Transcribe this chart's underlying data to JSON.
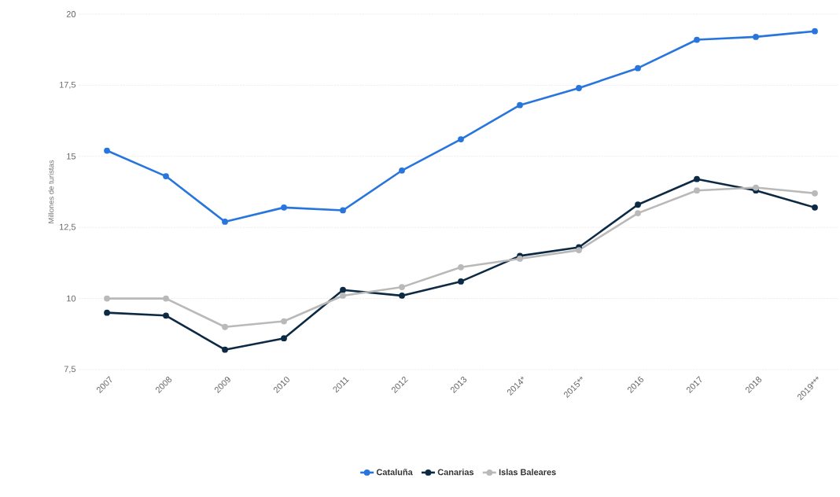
{
  "chart_data": {
    "type": "line",
    "ylabel": "Millones de turistas",
    "categories": [
      "2007",
      "2008",
      "2009",
      "2010",
      "2011",
      "2012",
      "2013",
      "2014*",
      "2015**",
      "2016",
      "2017",
      "2018",
      "2019***"
    ],
    "series": [
      {
        "name": "Cataluña",
        "color": "#2876dd",
        "values": [
          15.2,
          14.3,
          12.7,
          13.2,
          13.1,
          14.5,
          15.6,
          16.8,
          17.4,
          18.1,
          19.1,
          19.2,
          19.4
        ]
      },
      {
        "name": "Canarias",
        "color": "#0d2a45",
        "values": [
          9.5,
          9.4,
          8.2,
          8.6,
          10.3,
          10.1,
          10.6,
          11.5,
          11.8,
          13.3,
          14.2,
          13.8,
          13.2
        ]
      },
      {
        "name": "Islas Baleares",
        "color": "#b9b9b9",
        "values": [
          10.0,
          10.0,
          9.0,
          9.2,
          10.1,
          10.4,
          11.1,
          11.4,
          11.7,
          13.0,
          13.8,
          13.9,
          13.7
        ]
      }
    ],
    "ylim": [
      7.5,
      20
    ],
    "yticks": [
      {
        "value": 7.5,
        "label": "7,5"
      },
      10,
      {
        "value": 12.5,
        "label": "12,5"
      },
      15,
      {
        "value": 17.5,
        "label": "17,5"
      },
      20
    ],
    "grid": "y",
    "legend": "bottom",
    "marker": "circle",
    "line_style": "solid"
  }
}
